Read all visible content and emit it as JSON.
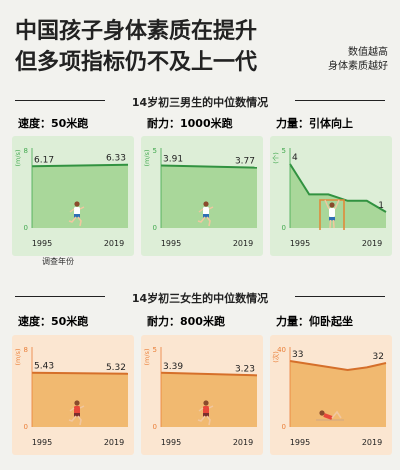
{
  "title": {
    "line1": "中国孩子身体素质在提升",
    "line2": "但多项指标仍不及上一代"
  },
  "note": {
    "line1": "数值越高",
    "line2": "身体素质越好"
  },
  "survey_year_label": "调查年份",
  "colors": {
    "male_accent": "#41a84e",
    "male_bg": "#ddeed7",
    "male_fill": "#a9d79a",
    "male_line": "#319240",
    "female_accent": "#ea7e37",
    "female_bg": "#fbe6d1",
    "female_fill": "#f1b970",
    "female_line": "#d56f2a",
    "text": "#222222"
  },
  "sections": [
    {
      "heading": "14岁初三男生的中位数情况",
      "charts": [
        {
          "title": "速度：50米跑",
          "icon": "runner-icon"
        },
        {
          "title": "耐力：1000米跑",
          "icon": "runner-icon"
        },
        {
          "title": "力量：引体向上",
          "icon": "pullup-icon"
        }
      ]
    },
    {
      "heading": "14岁初三女生的中位数情况",
      "charts": [
        {
          "title": "速度：50米跑",
          "icon": "runner-icon"
        },
        {
          "title": "耐力：800米跑",
          "icon": "runner-icon"
        },
        {
          "title": "力量：仰卧起坐",
          "icon": "situp-icon"
        }
      ]
    }
  ],
  "chart_data": [
    {
      "type": "area",
      "group": "male",
      "title": "速度：50米跑",
      "unit": "(m/s)",
      "ylim": [
        0,
        8
      ],
      "x_ticks": [
        "1995",
        "2019"
      ],
      "x": [
        "1995",
        "2019"
      ],
      "values": [
        6.17,
        6.33
      ],
      "labels": [
        "6.17",
        "6.33"
      ]
    },
    {
      "type": "area",
      "group": "male",
      "title": "耐力：1000米跑",
      "unit": "(m/s)",
      "ylim": [
        0,
        5
      ],
      "x_ticks": [
        "1995",
        "2019"
      ],
      "x": [
        "1995",
        "2019"
      ],
      "values": [
        3.91,
        3.77
      ],
      "labels": [
        "3.91",
        "3.77"
      ]
    },
    {
      "type": "area",
      "group": "male",
      "title": "力量：引体向上",
      "unit": "(个)",
      "ylim": [
        0,
        5
      ],
      "x_ticks": [
        "1995",
        "2019"
      ],
      "x": [
        "1995",
        "2000",
        "2005",
        "2010",
        "2014",
        "2019"
      ],
      "values": [
        4,
        2.1,
        2.1,
        1.7,
        1.7,
        1
      ],
      "labels": [
        "4",
        "",
        "",
        "",
        "",
        "1"
      ]
    },
    {
      "type": "area",
      "group": "female",
      "title": "速度：50米跑",
      "unit": "(m/s)",
      "ylim": [
        0,
        8
      ],
      "x_ticks": [
        "1995",
        "2019"
      ],
      "x": [
        "1995",
        "2019"
      ],
      "values": [
        5.43,
        5.32
      ],
      "labels": [
        "5.43",
        "5.32"
      ]
    },
    {
      "type": "area",
      "group": "female",
      "title": "耐力：800米跑",
      "unit": "(m/s)",
      "ylim": [
        0,
        5
      ],
      "x_ticks": [
        "1995",
        "2019"
      ],
      "x": [
        "1995",
        "2019"
      ],
      "values": [
        3.39,
        3.23
      ],
      "labels": [
        "3.39",
        "3.23"
      ]
    },
    {
      "type": "area",
      "group": "female",
      "title": "力量：仰卧起坐",
      "unit": "(次)",
      "ylim": [
        0,
        40
      ],
      "x_ticks": [
        "1995",
        "2019"
      ],
      "x": [
        "1995",
        "2000",
        "2005",
        "2010",
        "2014",
        "2019"
      ],
      "values": [
        33,
        31.5,
        30,
        28.5,
        29.8,
        32
      ],
      "labels": [
        "33",
        "",
        "",
        "",
        "",
        "32"
      ]
    }
  ]
}
